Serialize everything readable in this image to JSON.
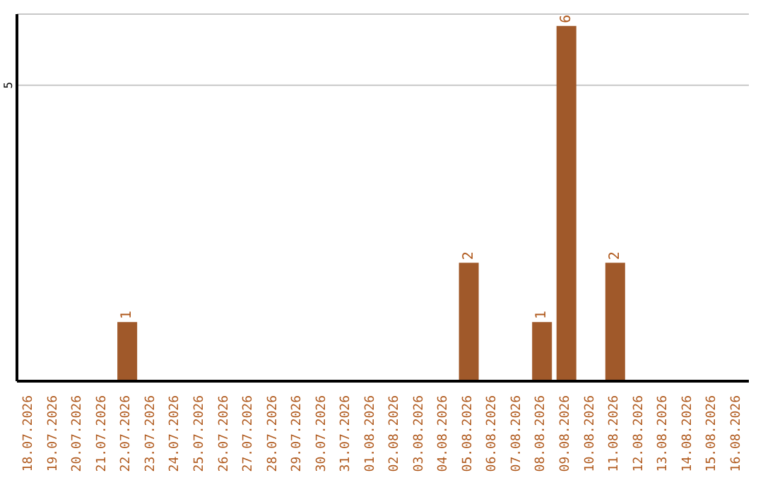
{
  "chart_data": {
    "type": "bar",
    "categories": [
      "18.07.2026",
      "19.07.2026",
      "20.07.2026",
      "21.07.2026",
      "22.07.2026",
      "23.07.2026",
      "24.07.2026",
      "25.07.2026",
      "26.07.2026",
      "27.07.2026",
      "28.07.2026",
      "29.07.2026",
      "30.07.2026",
      "31.07.2026",
      "01.08.2026",
      "02.08.2026",
      "03.08.2026",
      "04.08.2026",
      "05.08.2026",
      "06.08.2026",
      "07.08.2026",
      "08.08.2026",
      "09.08.2026",
      "10.08.2026",
      "11.08.2026",
      "12.08.2026",
      "13.08.2026",
      "14.08.2026",
      "15.08.2026",
      "16.08.2026"
    ],
    "values": [
      0,
      0,
      0,
      0,
      1,
      0,
      0,
      0,
      0,
      0,
      0,
      0,
      0,
      0,
      0,
      0,
      0,
      0,
      2,
      0,
      0,
      1,
      6,
      0,
      2,
      0,
      0,
      0,
      0,
      0
    ],
    "value_labels": [
      null,
      null,
      null,
      null,
      "1",
      null,
      null,
      null,
      null,
      null,
      null,
      null,
      null,
      null,
      null,
      null,
      null,
      null,
      "2",
      null,
      null,
      "1",
      "6",
      null,
      "2",
      null,
      null,
      null,
      null,
      null
    ],
    "color": "#a0592a",
    "ylim": [
      0,
      6.2
    ],
    "yticks": [
      5
    ],
    "grid": "y"
  }
}
